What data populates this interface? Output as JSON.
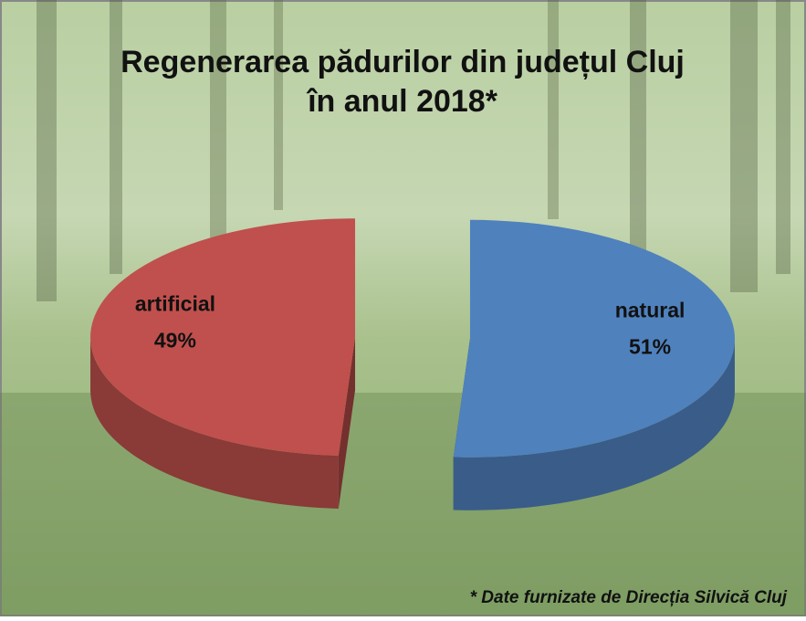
{
  "chart_data": {
    "type": "pie3d",
    "title": [
      "Regenerarea pădurilor din județul Cluj",
      "în anul 2018*"
    ],
    "note": "* Date furnizate de Direcția Silvică Cluj",
    "categories": [
      "natural",
      "artificial"
    ],
    "values": [
      51,
      49
    ],
    "value_labels": [
      "51%",
      "49%"
    ],
    "colors": [
      "#4f81bd",
      "#c0504d"
    ]
  }
}
